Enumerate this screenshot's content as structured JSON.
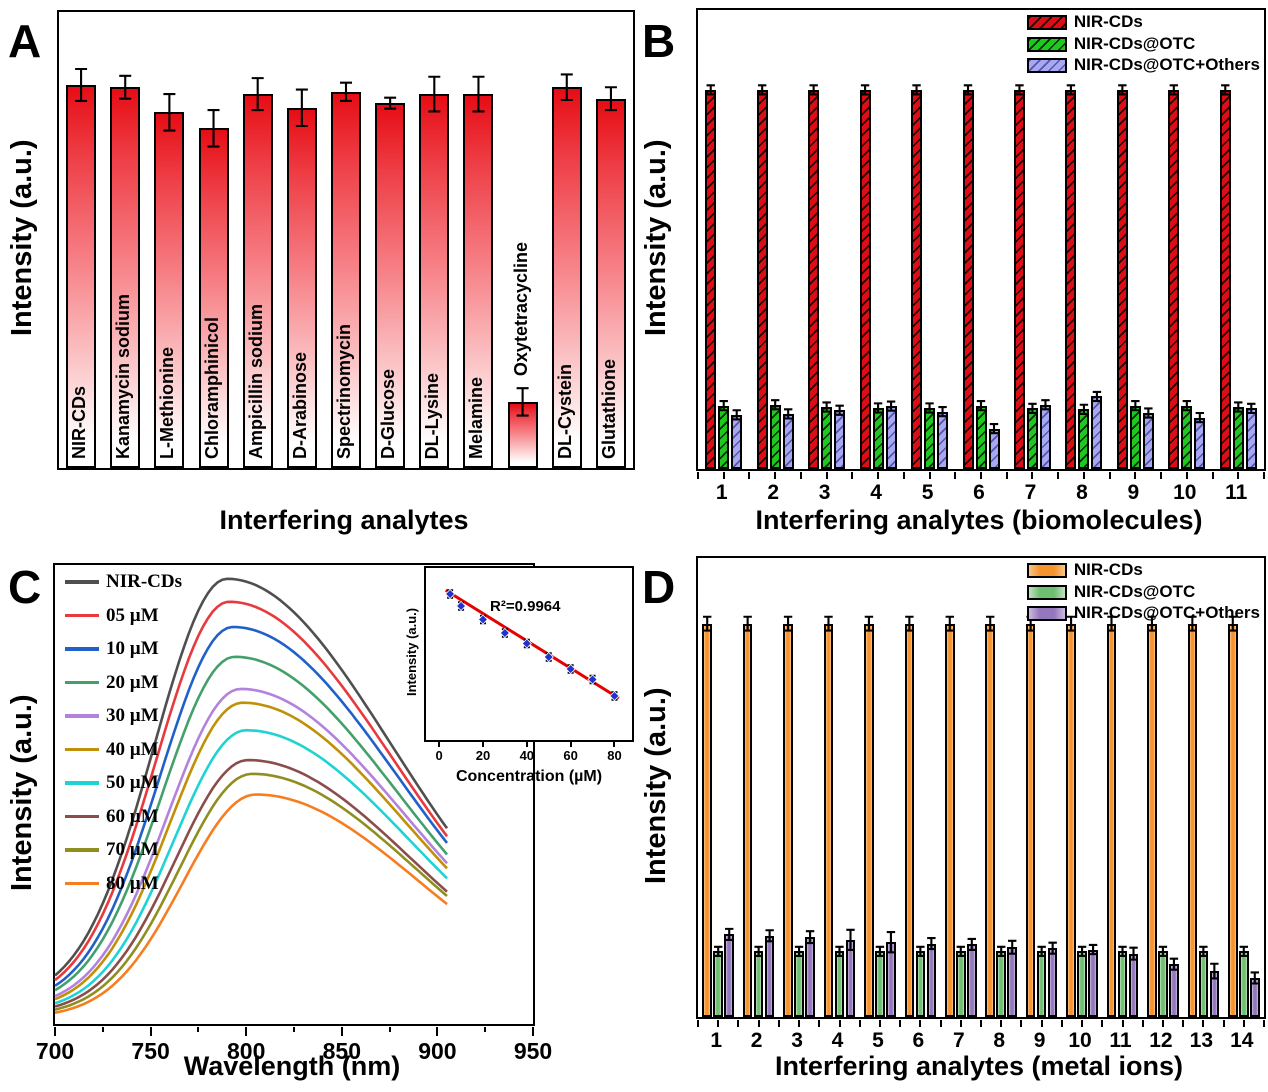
{
  "figure_title": "",
  "chart_data": [
    {
      "panel": "A",
      "type": "bar",
      "xlabel": "Interfering analytes",
      "ylabel": "Intensity (a.u.)",
      "categories": [
        "NIR-CDs",
        "Kanamycin sodium",
        "L-Methionine",
        "Chloramphinicol",
        "Ampicillin sodium",
        "D-Arabinose",
        "Spectrinomycin",
        "D-Glucose",
        "DL-Lysine",
        "Melamine",
        "Oxytetracycline",
        "DL-Cystein",
        "Glutathione"
      ],
      "values": [
        0.84,
        0.835,
        0.78,
        0.745,
        0.82,
        0.79,
        0.825,
        0.8,
        0.82,
        0.82,
        0.145,
        0.835,
        0.81
      ],
      "errors": [
        0.035,
        0.025,
        0.04,
        0.04,
        0.035,
        0.04,
        0.02,
        0.012,
        0.038,
        0.038,
        0.03,
        0.028,
        0.025
      ],
      "ylim": [
        0,
        1
      ],
      "bar_color_top": "#e60d15",
      "bar_color_bottom": "#ffffff",
      "grid": false
    },
    {
      "panel": "B",
      "type": "grouped-bar",
      "xlabel": "Interfering analytes (biomolecules)",
      "ylabel": "Intensity (a.u.)",
      "categories": [
        "1",
        "2",
        "3",
        "4",
        "5",
        "6",
        "7",
        "8",
        "9",
        "10",
        "11"
      ],
      "legend_position": "top-right",
      "ylim": [
        0,
        1
      ],
      "series": [
        {
          "name": "NIR-CDs",
          "color": "#dc0d15",
          "hatch": true,
          "values": [
            0.826,
            0.826,
            0.826,
            0.826,
            0.826,
            0.826,
            0.826,
            0.826,
            0.826,
            0.826,
            0.826
          ],
          "errors": [
            0.01,
            0.01,
            0.01,
            0.01,
            0.01,
            0.01,
            0.01,
            0.01,
            0.01,
            0.01,
            0.01
          ]
        },
        {
          "name": "NIR-CDs@OTC",
          "color": "#1fc81f",
          "hatch": true,
          "values": [
            0.138,
            0.14,
            0.135,
            0.133,
            0.133,
            0.138,
            0.132,
            0.13,
            0.138,
            0.138,
            0.135
          ],
          "errors": [
            0.01,
            0.01,
            0.01,
            0.01,
            0.01,
            0.01,
            0.01,
            0.01,
            0.01,
            0.01,
            0.01
          ]
        },
        {
          "name": "NIR-CDs@OTC+Others",
          "color": "#a8a8f0",
          "hatch": true,
          "values": [
            0.118,
            0.12,
            0.128,
            0.137,
            0.125,
            0.088,
            0.14,
            0.158,
            0.122,
            0.112,
            0.132
          ],
          "errors": [
            0.01,
            0.01,
            0.01,
            0.01,
            0.01,
            0.01,
            0.01,
            0.01,
            0.01,
            0.01,
            0.01
          ]
        }
      ]
    },
    {
      "panel": "C",
      "type": "line",
      "xlabel": "Wavelength (nm)",
      "ylabel": "Intensity (a.u.)",
      "xlim": [
        700,
        950
      ],
      "x_ticks": [
        700,
        750,
        800,
        850,
        900,
        950
      ],
      "x_minor_step": 25,
      "data_end_nm": 905,
      "legend_position": "top-left",
      "series": [
        {
          "name": "NIR-CDs",
          "color": "#4f4f4f",
          "peak_nm": 790,
          "peak_intensity": 0.97
        },
        {
          "name": "05 µM",
          "color": "#e8393c",
          "peak_nm": 791,
          "peak_intensity": 0.92
        },
        {
          "name": "10 µM",
          "color": "#2060c8",
          "peak_nm": 793,
          "peak_intensity": 0.865
        },
        {
          "name": "20 µM",
          "color": "#44a06a",
          "peak_nm": 794,
          "peak_intensity": 0.8
        },
        {
          "name": "30 µM",
          "color": "#b282dd",
          "peak_nm": 797,
          "peak_intensity": 0.73
        },
        {
          "name": "40 µM",
          "color": "#c09008",
          "peak_nm": 798,
          "peak_intensity": 0.7
        },
        {
          "name": "50 µM",
          "color": "#1ed3d3",
          "peak_nm": 800,
          "peak_intensity": 0.64
        },
        {
          "name": "60 µM",
          "color": "#8b4d4a",
          "peak_nm": 801,
          "peak_intensity": 0.575
        },
        {
          "name": "70 µM",
          "color": "#8f8f20",
          "peak_nm": 803,
          "peak_intensity": 0.545
        },
        {
          "name": "80 µM",
          "color": "#f57e20",
          "peak_nm": 805,
          "peak_intensity": 0.5
        }
      ]
    },
    {
      "panel": "C-inset",
      "type": "scatter",
      "xlabel": "Concentration (µM)",
      "ylabel": "Intensity (a.u.)",
      "annotation": "R²=0.9964",
      "x": [
        5,
        10,
        20,
        30,
        40,
        50,
        60,
        70,
        80
      ],
      "y": [
        0.88,
        0.8,
        0.71,
        0.62,
        0.55,
        0.46,
        0.38,
        0.31,
        0.2
      ],
      "y_err": 0.025,
      "x_ticks": [
        0,
        20,
        40,
        60,
        80
      ],
      "marker_color": "#2233cc",
      "fit_color": "#e60000",
      "fit_line": {
        "x1": 3,
        "y1": 0.905,
        "x2": 82,
        "y2": 0.185
      }
    },
    {
      "panel": "D",
      "type": "grouped-bar",
      "xlabel": "Interfering analytes (metal ions)",
      "ylabel": "Intensity (a.u.)",
      "categories": [
        "1",
        "2",
        "3",
        "4",
        "5",
        "6",
        "7",
        "8",
        "9",
        "10",
        "11",
        "12",
        "13",
        "14"
      ],
      "legend_position": "top-right",
      "ylim": [
        0,
        1
      ],
      "series": [
        {
          "name": "NIR-CDs",
          "color": "#f5942f",
          "color_light": "#fbc588",
          "values": [
            0.857,
            0.857,
            0.857,
            0.857,
            0.857,
            0.857,
            0.857,
            0.857,
            0.857,
            0.857,
            0.857,
            0.857,
            0.857,
            0.857
          ],
          "errors": [
            0.015,
            0.015,
            0.015,
            0.015,
            0.015,
            0.015,
            0.015,
            0.015,
            0.015,
            0.015,
            0.015,
            0.015,
            0.015,
            0.015
          ]
        },
        {
          "name": "NIR-CDs@OTC",
          "color": "#6fbf70",
          "color_light": "#bfe3c0",
          "values": [
            0.143,
            0.143,
            0.143,
            0.143,
            0.143,
            0.143,
            0.143,
            0.143,
            0.143,
            0.143,
            0.143,
            0.143,
            0.143,
            0.143
          ],
          "errors": [
            0.01,
            0.01,
            0.01,
            0.01,
            0.01,
            0.01,
            0.01,
            0.01,
            0.01,
            0.01,
            0.01,
            0.01,
            0.01,
            0.01
          ]
        },
        {
          "name": "NIR-CDs@OTC+Others",
          "color": "#9478bd",
          "color_light": "#cbbade",
          "values": [
            0.18,
            0.177,
            0.174,
            0.168,
            0.163,
            0.16,
            0.158,
            0.152,
            0.15,
            0.147,
            0.138,
            0.115,
            0.1,
            0.085
          ],
          "errors": [
            0.012,
            0.012,
            0.013,
            0.022,
            0.022,
            0.012,
            0.012,
            0.014,
            0.012,
            0.01,
            0.013,
            0.012,
            0.016,
            0.012
          ]
        }
      ]
    }
  ]
}
